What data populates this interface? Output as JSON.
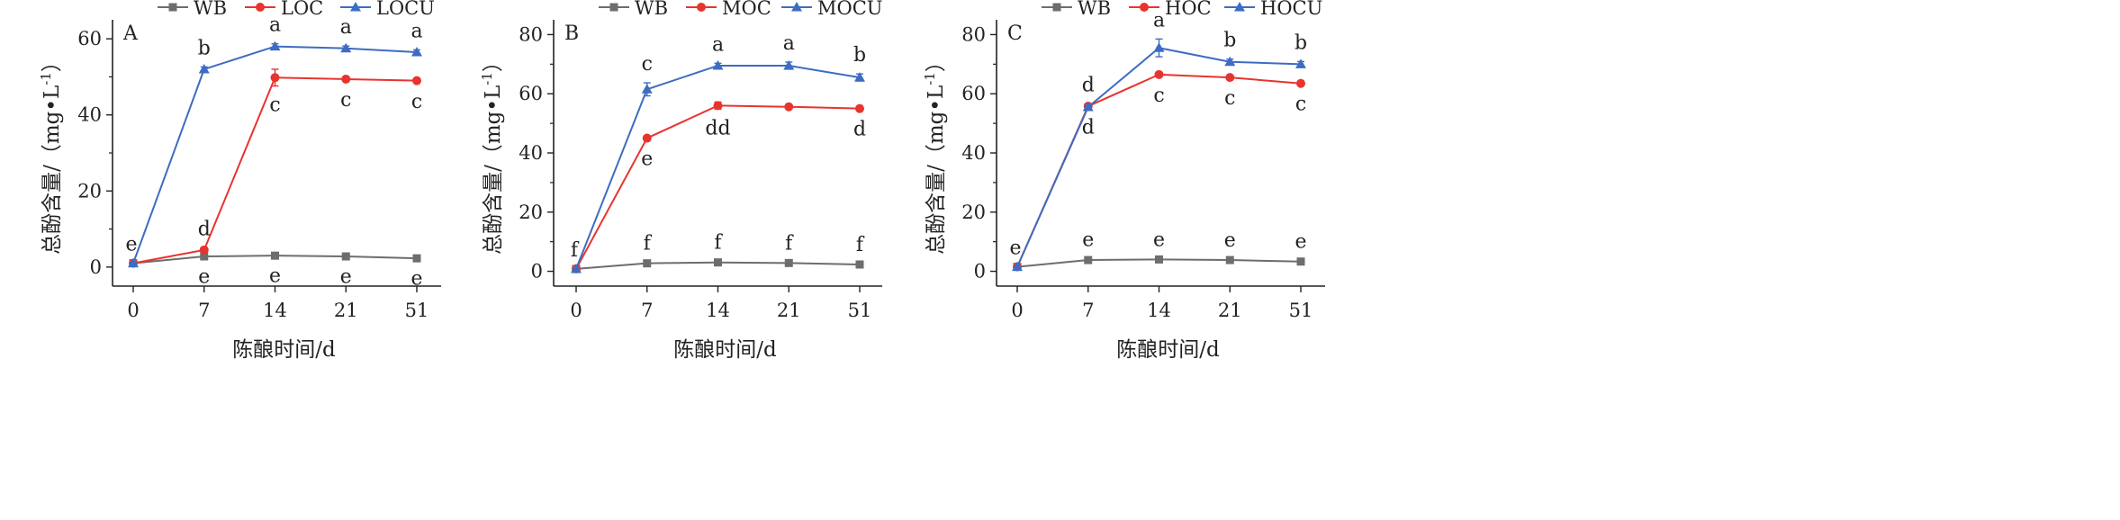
{
  "colors": {
    "WB": "#6d6d6d",
    "OC": "#e8342e",
    "OCU": "#3d6cc2",
    "axis": "#222222"
  },
  "marker_shapes": {
    "WB": "square",
    "OC": "circle",
    "OCU": "triangle"
  },
  "chart_data": [
    {
      "panel_label": "A",
      "type": "line",
      "x": [
        "0",
        "7",
        "14",
        "21",
        "51"
      ],
      "xlabel": "陈酿时间/d",
      "ylabel_main": "总酚含量/（mg•L",
      "ylabel_sup": "-1",
      "ylabel_end": "）",
      "ylim": [
        -5,
        65
      ],
      "yticks": [
        0,
        20,
        40,
        60
      ],
      "legend": [
        "WB",
        "LOC",
        "LOCU"
      ],
      "series": [
        {
          "name": "WB",
          "values": [
            1.0,
            2.8,
            3.0,
            2.8,
            2.3
          ],
          "err": [
            0.3,
            0.4,
            0.3,
            0.3,
            0.3
          ],
          "labels": [
            "e",
            "e",
            "e",
            "e",
            "e"
          ],
          "label_pos": [
            "none",
            "below",
            "below",
            "below",
            "below"
          ]
        },
        {
          "name": "LOC",
          "values": [
            1.0,
            4.5,
            49.8,
            49.4,
            49.0
          ],
          "err": [
            0.3,
            0.6,
            2.2,
            0.5,
            0.5
          ],
          "labels": [
            "",
            "d",
            "c",
            "c",
            "c"
          ],
          "label_pos": [
            "none",
            "above",
            "below",
            "below",
            "below"
          ]
        },
        {
          "name": "LOCU",
          "values": [
            1.0,
            52.0,
            58.0,
            57.5,
            56.5
          ],
          "err": [
            0.3,
            0.6,
            0.7,
            0.6,
            0.6
          ],
          "labels": [
            "e",
            "b",
            "a",
            "a",
            "a"
          ],
          "label_pos": [
            "above",
            "above",
            "above",
            "above",
            "above"
          ]
        }
      ]
    },
    {
      "panel_label": "B",
      "type": "line",
      "x": [
        "0",
        "7",
        "14",
        "21",
        "51"
      ],
      "xlabel": "陈酿时间/d",
      "ylabel_main": "总酚含量/（mg•L",
      "ylabel_sup": "-1",
      "ylabel_end": "）",
      "ylim": [
        -5,
        85
      ],
      "yticks": [
        0,
        20,
        40,
        60,
        80
      ],
      "legend": [
        "WB",
        "MOC",
        "MOCU"
      ],
      "series": [
        {
          "name": "WB",
          "values": [
            0.8,
            2.7,
            3.0,
            2.8,
            2.3
          ],
          "err": [
            0.3,
            0.4,
            0.3,
            0.3,
            0.3
          ],
          "labels": [
            "f",
            "f",
            "f",
            "f",
            "f"
          ],
          "label_pos": [
            "above",
            "above",
            "above",
            "above",
            "above"
          ]
        },
        {
          "name": "MOC",
          "values": [
            0.8,
            45.0,
            56.0,
            55.6,
            55.0
          ],
          "err": [
            0.3,
            0.6,
            1.2,
            0.6,
            0.6
          ],
          "labels": [
            "",
            "e",
            "dd",
            "",
            "d"
          ],
          "label_pos": [
            "none",
            "below",
            "below",
            "none",
            "below"
          ]
        },
        {
          "name": "MOCU",
          "values": [
            0.8,
            61.5,
            69.5,
            69.5,
            65.5
          ],
          "err": [
            0.3,
            2.2,
            0.8,
            1.2,
            1.2
          ],
          "labels": [
            "",
            "c",
            "a",
            "a",
            "b"
          ],
          "label_pos": [
            "none",
            "above",
            "above",
            "above",
            "above"
          ]
        }
      ]
    },
    {
      "panel_label": "C",
      "type": "line",
      "x": [
        "0",
        "7",
        "14",
        "21",
        "51"
      ],
      "xlabel": "陈酿时间/d",
      "ylabel_main": "总酚含量/（mg•L",
      "ylabel_sup": "-1",
      "ylabel_end": "）",
      "ylim": [
        -5,
        85
      ],
      "yticks": [
        0,
        20,
        40,
        60,
        80
      ],
      "legend": [
        "WB",
        "HOC",
        "HOCU"
      ],
      "series": [
        {
          "name": "WB",
          "values": [
            1.5,
            3.8,
            4.0,
            3.8,
            3.3
          ],
          "err": [
            0.3,
            0.4,
            0.3,
            0.3,
            0.3
          ],
          "labels": [
            "e",
            "e",
            "e",
            "e",
            "e"
          ],
          "label_pos": [
            "above",
            "above",
            "above",
            "above",
            "above"
          ]
        },
        {
          "name": "HOC",
          "values": [
            1.5,
            55.8,
            66.5,
            65.5,
            63.5
          ],
          "err": [
            0.3,
            0.8,
            0.6,
            0.6,
            0.6
          ],
          "labels": [
            "",
            "d",
            "c",
            "c",
            "c"
          ],
          "label_pos": [
            "none",
            "below",
            "below",
            "below",
            "below"
          ]
        },
        {
          "name": "HOCU",
          "values": [
            1.5,
            55.5,
            75.5,
            70.8,
            70.0
          ],
          "err": [
            0.3,
            1.0,
            3.0,
            0.9,
            0.9
          ],
          "labels": [
            "",
            "d",
            "a",
            "b",
            "b"
          ],
          "label_pos": [
            "none",
            "above",
            "above",
            "above",
            "above"
          ]
        }
      ]
    }
  ]
}
